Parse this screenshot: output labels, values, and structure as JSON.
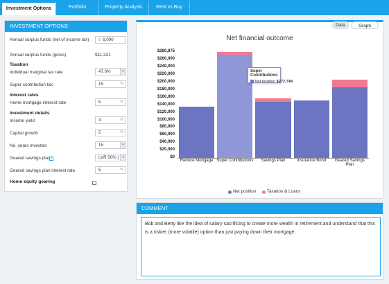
{
  "tabs": [
    {
      "label": "Investment Options",
      "active": true
    },
    {
      "label": "Portfolio",
      "active": false
    },
    {
      "label": "Property Analysis",
      "active": false
    },
    {
      "label": "Rent vs Buy",
      "active": false
    }
  ],
  "left_panel": {
    "title": "INVESTMENT OPTIONS",
    "surplus_net_label": "Annual surplus funds (net of income tax)",
    "surplus_net_prefix": "$",
    "surplus_net_value": "6,000",
    "surplus_gross_label": "Annual surplus funds (gross)",
    "surplus_gross_value": "$11,321",
    "taxation_heading": "Taxation",
    "marginal_rate_label": "Individual marginal tax rate",
    "marginal_rate_value": "47.0%",
    "super_tax_label": "Super contribution tax",
    "super_tax_value": "15",
    "interest_heading": "Interest rates",
    "mortgage_rate_label": "Home mortgage interest rate",
    "mortgage_rate_value": "5",
    "investment_heading": "Investment details",
    "income_yield_label": "Income yield",
    "income_yield_value": "4",
    "capital_growth_label": "Capital growth",
    "capital_growth_value": "5",
    "years_label": "No. years invested",
    "years_value": "15",
    "geared_label": "Geared savings plan",
    "geared_value": "LVR 50% | 1:",
    "geared_rate_label": "Geared savings plan interest rate",
    "geared_rate_value": "5",
    "equity_label": "Home equity gearing",
    "percent_unit": "%"
  },
  "chart_panel": {
    "data_toggle": "Data",
    "graph_toggle": "Graph"
  },
  "chart_data": {
    "type": "bar",
    "title": "Net financial outcome",
    "categories": [
      "Reduce Mortgage",
      "Super Contributions",
      "Savings Plan",
      "Insurance Bond",
      "Geared Savings Plan"
    ],
    "series": [
      {
        "name": "Net position",
        "values": [
          135000,
          272748,
          148000,
          152000,
          187000
        ],
        "color": "#6b75c2"
      },
      {
        "name": "Taxation & Loans",
        "values": [
          0,
          8127,
          9000,
          0,
          21000
        ],
        "color": "#f07a92"
      }
    ],
    "ylim": [
      0,
      280875
    ],
    "yticks": [
      "$280,875",
      "$260,000",
      "$240,000",
      "$220,000",
      "$200,000",
      "$180,000",
      "$160,000",
      "$140,000",
      "$120,000",
      "$100,000",
      "$80,000",
      "$60,000",
      "$40,000",
      "$20,000",
      "$0"
    ],
    "tooltip": {
      "title": "Super Contributions",
      "series": "Net position",
      "value": "$272,748"
    },
    "legend_position": "bottom"
  },
  "comment": {
    "title": "COMMENT",
    "text": "Bob and Betty like the idea of salary sacrificing to create more wealth in retirement and understand that this is a riskier (more volatile) option than just paying down their mortgage."
  },
  "colors": {
    "accent": "#1aa3e8",
    "net": "#6b75c2",
    "tax": "#f07a92"
  }
}
